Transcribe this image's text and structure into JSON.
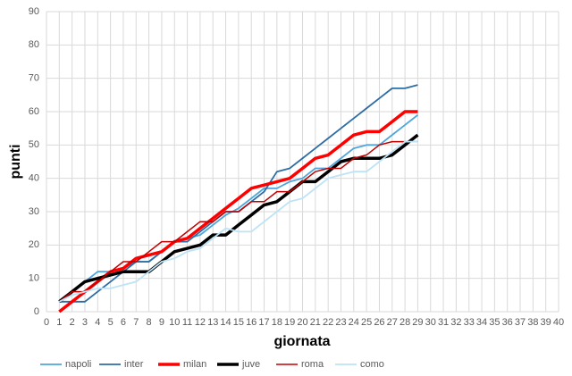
{
  "chart_data": {
    "type": "line",
    "x_label": "giornata",
    "y_label": "punti",
    "x": [
      1,
      2,
      3,
      4,
      5,
      6,
      7,
      8,
      9,
      10,
      11,
      12,
      13,
      14,
      15,
      16,
      17,
      18,
      19,
      20,
      21,
      22,
      23,
      24,
      25,
      26,
      27,
      28,
      29
    ],
    "series": [
      {
        "name": "napoli",
        "color": "#4ea6dc",
        "line_width": 1.8,
        "values": [
          3,
          6,
          9,
          12,
          12,
          13,
          15,
          15,
          18,
          21,
          22,
          23,
          26,
          29,
          31,
          34,
          37,
          37,
          39,
          40,
          43,
          43,
          46,
          49,
          50,
          50,
          53,
          56,
          59
        ]
      },
      {
        "name": "inter",
        "color": "#2e6ca4",
        "line_width": 1.8,
        "values": [
          3,
          3,
          3,
          6,
          9,
          12,
          15,
          15,
          18,
          21,
          21,
          24,
          27,
          30,
          30,
          33,
          36,
          42,
          43,
          46,
          49,
          52,
          55,
          58,
          61,
          64,
          67,
          67,
          68
        ]
      },
      {
        "name": "milan",
        "color": "#ff0000",
        "line_width": 3.5,
        "values": [
          0,
          3,
          6,
          9,
          12,
          13,
          16,
          17,
          18,
          21,
          22,
          25,
          28,
          31,
          34,
          37,
          38,
          39,
          40,
          43,
          46,
          47,
          50,
          53,
          54,
          54,
          57,
          60,
          60
        ]
      },
      {
        "name": "juve",
        "color": "#000000",
        "line_width": 3.5,
        "values": [
          3,
          6,
          9,
          10,
          11,
          12,
          12,
          12,
          15,
          18,
          19,
          20,
          23,
          23,
          26,
          29,
          32,
          33,
          36,
          39,
          39,
          42,
          45,
          46,
          46,
          46,
          47,
          50,
          53
        ]
      },
      {
        "name": "roma",
        "color": "#c00000",
        "line_width": 1.5,
        "values": [
          3,
          6,
          6,
          9,
          12,
          15,
          15,
          18,
          21,
          21,
          24,
          27,
          27,
          30,
          30,
          33,
          33,
          36,
          36,
          39,
          42,
          43,
          43,
          46,
          47,
          50,
          51,
          51,
          51
        ]
      },
      {
        "name": "como",
        "color": "#bde3f6",
        "line_width": 1.8,
        "values": [
          3,
          5,
          6,
          7,
          7,
          8,
          9,
          12,
          15,
          16,
          18,
          19,
          22,
          25,
          24,
          24,
          27,
          30,
          33,
          34,
          37,
          40,
          41,
          42,
          42,
          45,
          48,
          51,
          51
        ]
      }
    ],
    "xlim": [
      0,
      40
    ],
    "xticks": [
      0,
      1,
      2,
      3,
      4,
      5,
      6,
      7,
      8,
      9,
      10,
      11,
      12,
      13,
      14,
      15,
      16,
      17,
      18,
      19,
      20,
      21,
      22,
      23,
      24,
      25,
      26,
      27,
      28,
      29,
      30,
      31,
      32,
      33,
      34,
      35,
      36,
      37,
      38,
      39,
      40
    ],
    "ylim": [
      0,
      90
    ],
    "yticks": [
      0,
      10,
      20,
      30,
      40,
      50,
      60,
      70,
      80,
      90
    ],
    "grid": true,
    "legend": "bottom"
  }
}
